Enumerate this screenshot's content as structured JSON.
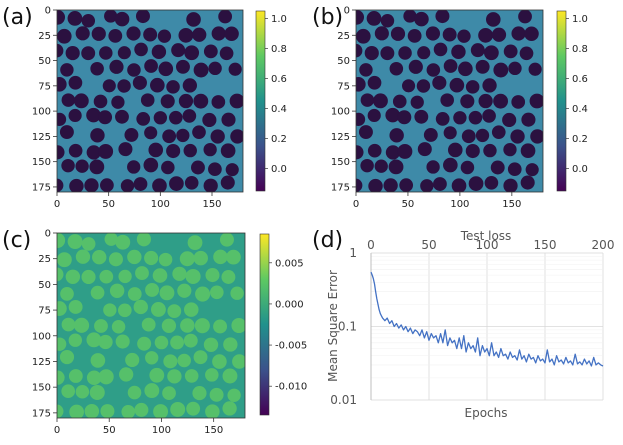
{
  "figure": {
    "panels": [
      {
        "label": "(a)"
      },
      {
        "label": "(b)"
      },
      {
        "label": "(c)"
      },
      {
        "label": "(d)"
      }
    ]
  },
  "chart_data": [
    {
      "type": "heatmap",
      "panel": "(a)",
      "x_ticks": [
        "0",
        "50",
        "100",
        "150"
      ],
      "y_ticks": [
        "0",
        "25",
        "50",
        "75",
        "100",
        "125",
        "150",
        "175"
      ],
      "xlim": [
        0,
        180
      ],
      "ylim": [
        180,
        0
      ],
      "colorbar": {
        "range": [
          -0.15,
          1.05
        ],
        "ticks": [
          "1.0",
          "0.8",
          "0.6",
          "0.4",
          "0.2",
          "0.0"
        ],
        "colormap": [
          "#440154",
          "#3b528b",
          "#21918c",
          "#5ec962",
          "#fde725"
        ]
      },
      "background_color": "#3e8aa8",
      "fiber_color": "#2b1140"
    },
    {
      "type": "heatmap",
      "panel": "(b)",
      "x_ticks": [
        "0",
        "50",
        "100",
        "150"
      ],
      "y_ticks": [
        "0",
        "25",
        "50",
        "75",
        "100",
        "125",
        "150",
        "175"
      ],
      "xlim": [
        0,
        180
      ],
      "ylim": [
        180,
        0
      ],
      "colorbar": {
        "range": [
          -0.15,
          1.05
        ],
        "ticks": [
          "1.0",
          "0.8",
          "0.6",
          "0.4",
          "0.2",
          "0.0"
        ],
        "colormap": [
          "#440154",
          "#3b528b",
          "#21918c",
          "#5ec962",
          "#fde725"
        ]
      },
      "background_color": "#3e8aa8",
      "fiber_color": "#2b1140"
    },
    {
      "type": "heatmap",
      "panel": "(c)",
      "x_ticks": [
        "0",
        "50",
        "100",
        "150"
      ],
      "y_ticks": [
        "0",
        "25",
        "50",
        "75",
        "100",
        "125",
        "150",
        "175"
      ],
      "xlim": [
        0,
        180
      ],
      "ylim": [
        180,
        0
      ],
      "colorbar": {
        "range": [
          -0.0135,
          0.0085
        ],
        "ticks": [
          "0.005",
          "0.000",
          "-0.005",
          "-0.010"
        ],
        "colormap": [
          "#440154",
          "#3b528b",
          "#21918c",
          "#5ec962",
          "#fde725"
        ]
      },
      "background_color": "#2f9e88",
      "fiber_color": "#56c06a"
    },
    {
      "type": "line",
      "panel": "(d)",
      "title": "Test loss",
      "xlabel": "Epochs",
      "ylabel": "Mean Square Error",
      "yscale": "log",
      "xlim": [
        0,
        200
      ],
      "ylim": [
        0.01,
        1
      ],
      "x_ticks": [
        "0",
        "50",
        "100",
        "150",
        "200"
      ],
      "y_ticks": [
        "1",
        "0.1",
        "0.01"
      ],
      "line_color": "#4472c4",
      "series": [
        {
          "name": "Test loss",
          "x": [
            0,
            1,
            2,
            3,
            4,
            5,
            6,
            7,
            8,
            9,
            10,
            12,
            14,
            16,
            18,
            20,
            22,
            24,
            26,
            28,
            30,
            32,
            34,
            36,
            38,
            40,
            42,
            44,
            46,
            48,
            50,
            52,
            54,
            56,
            58,
            60,
            62,
            64,
            66,
            68,
            70,
            72,
            74,
            76,
            78,
            80,
            82,
            84,
            86,
            88,
            90,
            92,
            94,
            96,
            98,
            100,
            102,
            104,
            106,
            108,
            110,
            112,
            114,
            116,
            118,
            120,
            122,
            124,
            126,
            128,
            130,
            132,
            134,
            136,
            138,
            140,
            142,
            144,
            146,
            148,
            150,
            152,
            154,
            156,
            158,
            160,
            162,
            164,
            166,
            168,
            170,
            172,
            174,
            176,
            178,
            180,
            182,
            184,
            186,
            188,
            190,
            192,
            194,
            196,
            198,
            200
          ],
          "values": [
            0.55,
            0.5,
            0.45,
            0.38,
            0.3,
            0.24,
            0.2,
            0.17,
            0.15,
            0.14,
            0.13,
            0.12,
            0.13,
            0.11,
            0.12,
            0.1,
            0.11,
            0.095,
            0.105,
            0.09,
            0.1,
            0.085,
            0.095,
            0.08,
            0.09,
            0.085,
            0.075,
            0.09,
            0.07,
            0.085,
            0.065,
            0.08,
            0.07,
            0.075,
            0.06,
            0.08,
            0.06,
            0.09,
            0.055,
            0.07,
            0.06,
            0.065,
            0.05,
            0.07,
            0.05,
            0.075,
            0.045,
            0.06,
            0.05,
            0.055,
            0.045,
            0.07,
            0.04,
            0.055,
            0.045,
            0.05,
            0.04,
            0.06,
            0.04,
            0.045,
            0.038,
            0.05,
            0.04,
            0.042,
            0.036,
            0.045,
            0.038,
            0.04,
            0.035,
            0.048,
            0.036,
            0.04,
            0.033,
            0.042,
            0.036,
            0.038,
            0.032,
            0.04,
            0.034,
            0.036,
            0.032,
            0.048,
            0.033,
            0.036,
            0.03,
            0.04,
            0.033,
            0.035,
            0.031,
            0.038,
            0.032,
            0.034,
            0.03,
            0.042,
            0.031,
            0.033,
            0.03,
            0.036,
            0.031,
            0.034,
            0.029,
            0.038,
            0.03,
            0.032,
            0.03,
            0.029
          ]
        }
      ]
    }
  ]
}
